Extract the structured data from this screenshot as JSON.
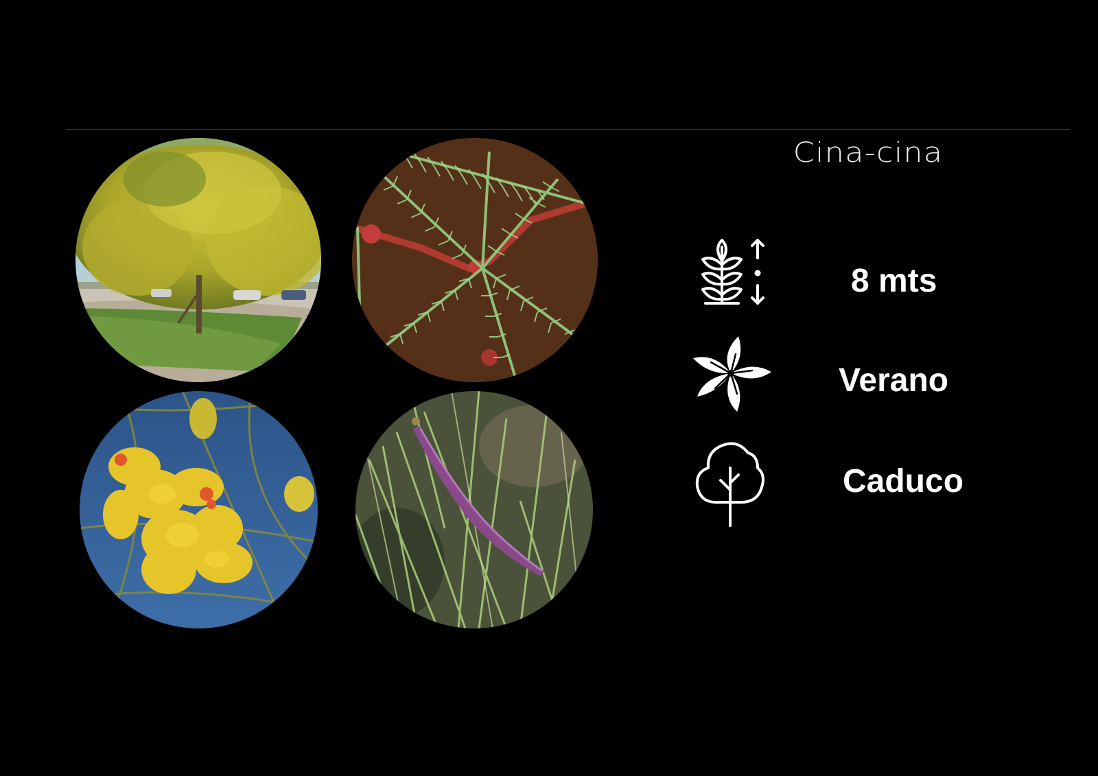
{
  "title": "Cina-cina",
  "photos": [
    {
      "name": "tree-photo"
    },
    {
      "name": "leaves-photo"
    },
    {
      "name": "flowers-photo"
    },
    {
      "name": "pods-photo"
    }
  ],
  "info": {
    "height": {
      "icon": "plant-height-icon",
      "value": "8 mts"
    },
    "flowering": {
      "icon": "flower-icon",
      "value": "Verano"
    },
    "foliage": {
      "icon": "tree-icon",
      "value": "Caduco"
    }
  },
  "colors": {
    "background": "#000000",
    "text": "#ffffff",
    "divider": "#3a3a3a"
  }
}
